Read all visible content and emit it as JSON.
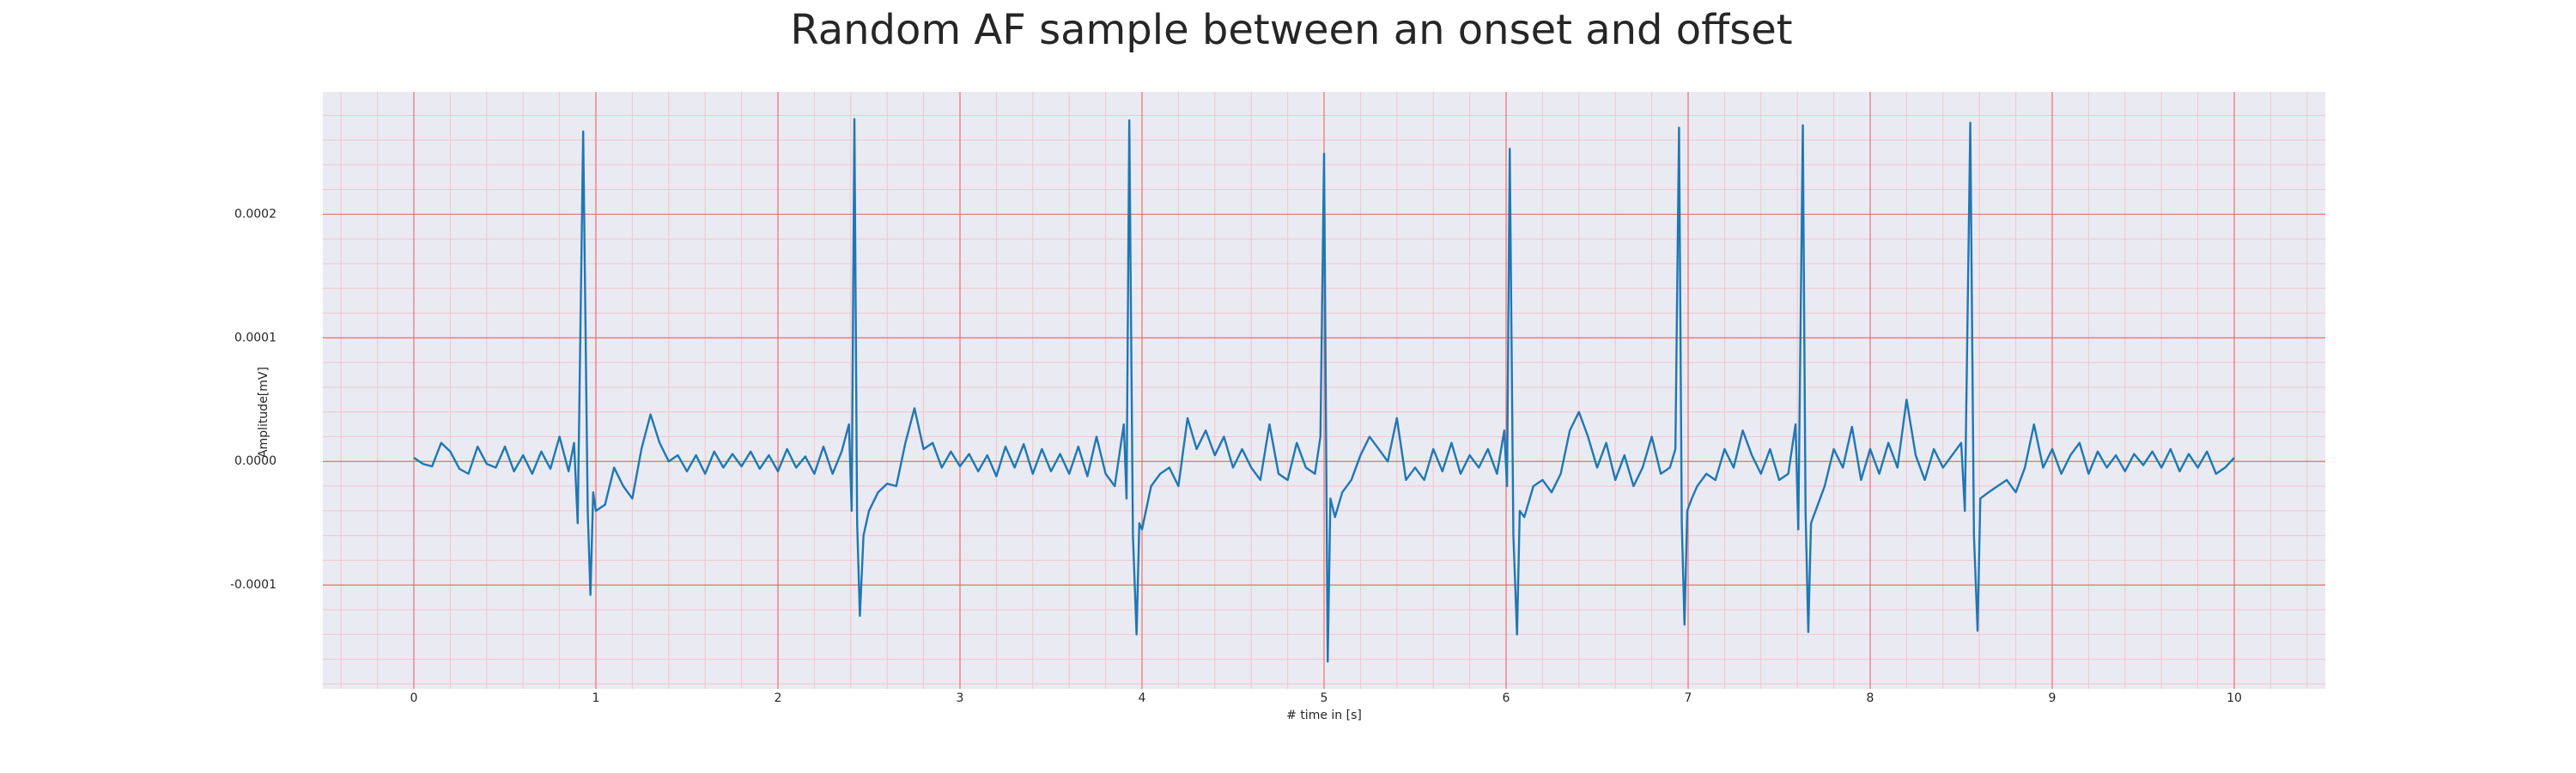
{
  "chart_data": {
    "type": "line",
    "title": "Random AF sample between an onset and offset",
    "x_label": "# time in [s]",
    "y_label": "Amplitude[mV]",
    "color": "#1f77b4",
    "grid": true,
    "minor_grid": true,
    "xlim": [
      -0.5,
      10.5
    ],
    "xticks": [
      0,
      1,
      2,
      3,
      4,
      5,
      6,
      7,
      8,
      9,
      10
    ],
    "ylim": [
      -0.000184,
      0.000299
    ],
    "yticks": [
      -0.0001,
      {
        "value": 0,
        "label": "0.0000"
      },
      0.0001,
      0.0002
    ],
    "x": [
      0,
      0.05,
      0.1,
      0.15,
      0.2,
      0.25,
      0.3,
      0.35,
      0.4,
      0.45,
      0.5,
      0.55,
      0.6,
      0.65,
      0.7,
      0.75,
      0.8,
      0.85,
      0.88,
      0.9,
      0.93,
      0.955,
      0.97,
      0.985,
      1.0,
      1.05,
      1.1,
      1.15,
      1.2,
      1.25,
      1.3,
      1.35,
      1.4,
      1.45,
      1.5,
      1.55,
      1.6,
      1.65,
      1.7,
      1.75,
      1.8,
      1.85,
      1.9,
      1.95,
      2.0,
      2.05,
      2.1,
      2.15,
      2.2,
      2.25,
      2.3,
      2.35,
      2.39,
      2.405,
      2.42,
      2.435,
      2.45,
      2.47,
      2.5,
      2.55,
      2.6,
      2.65,
      2.7,
      2.75,
      2.8,
      2.85,
      2.9,
      2.95,
      3.0,
      3.05,
      3.1,
      3.15,
      3.2,
      3.25,
      3.3,
      3.35,
      3.4,
      3.45,
      3.5,
      3.55,
      3.6,
      3.65,
      3.7,
      3.75,
      3.8,
      3.85,
      3.9,
      3.915,
      3.93,
      3.95,
      3.97,
      3.985,
      4.0,
      4.05,
      4.1,
      4.15,
      4.2,
      4.25,
      4.3,
      4.35,
      4.4,
      4.45,
      4.5,
      4.55,
      4.6,
      4.65,
      4.7,
      4.75,
      4.8,
      4.85,
      4.9,
      4.95,
      4.98,
      5.0,
      5.015,
      5.02,
      5.035,
      5.06,
      5.1,
      5.15,
      5.2,
      5.25,
      5.3,
      5.35,
      5.4,
      5.45,
      5.5,
      5.55,
      5.6,
      5.65,
      5.7,
      5.75,
      5.8,
      5.85,
      5.9,
      5.95,
      5.99,
      6.005,
      6.02,
      6.04,
      6.06,
      6.075,
      6.1,
      6.15,
      6.2,
      6.25,
      6.3,
      6.35,
      6.4,
      6.45,
      6.5,
      6.55,
      6.6,
      6.65,
      6.7,
      6.75,
      6.8,
      6.85,
      6.9,
      6.93,
      6.95,
      6.965,
      6.98,
      6.995,
      7.02,
      7.05,
      7.1,
      7.15,
      7.2,
      7.25,
      7.3,
      7.35,
      7.4,
      7.45,
      7.5,
      7.55,
      7.59,
      7.605,
      7.63,
      7.645,
      7.66,
      7.675,
      7.7,
      7.75,
      7.8,
      7.85,
      7.9,
      7.95,
      8.0,
      8.05,
      8.1,
      8.15,
      8.2,
      8.25,
      8.3,
      8.35,
      8.4,
      8.45,
      8.5,
      8.52,
      8.55,
      8.57,
      8.59,
      8.605,
      8.65,
      8.7,
      8.75,
      8.8,
      8.85,
      8.9,
      8.95,
      9.0,
      9.05,
      9.1,
      9.15,
      9.2,
      9.25,
      9.3,
      9.35,
      9.4,
      9.45,
      9.5,
      9.55,
      9.6,
      9.65,
      9.7,
      9.75,
      9.8,
      9.85,
      9.9,
      9.95,
      10.0
    ],
    "values": [
      3e-06,
      -2e-06,
      -4e-06,
      1.5e-05,
      8e-06,
      -6e-06,
      -1e-05,
      1.2e-05,
      -2e-06,
      -5e-06,
      1.2e-05,
      -8e-06,
      5e-06,
      -1e-05,
      8e-06,
      -6e-06,
      2e-05,
      -8e-06,
      1.5e-05,
      -5e-05,
      0.000267,
      -4e-05,
      -0.000108,
      -2.5e-05,
      -4e-05,
      -3.5e-05,
      -5e-06,
      -2e-05,
      -3e-05,
      1e-05,
      3.8e-05,
      1.5e-05,
      0,
      5e-06,
      -8e-06,
      5e-06,
      -1e-05,
      8e-06,
      -5e-06,
      6e-06,
      -4e-06,
      8e-06,
      -6e-06,
      5e-06,
      -8e-06,
      1e-05,
      -5e-06,
      4e-06,
      -1e-05,
      1.2e-05,
      -1e-05,
      8e-06,
      3e-05,
      -4e-05,
      0.000277,
      -5e-05,
      -0.000125,
      -6e-05,
      -4e-05,
      -2.5e-05,
      -1.8e-05,
      -2e-05,
      1.5e-05,
      4.3e-05,
      1e-05,
      1.5e-05,
      -5e-06,
      8e-06,
      -4e-06,
      6e-06,
      -8e-06,
      5e-06,
      -1.2e-05,
      1.2e-05,
      -5e-06,
      1.4e-05,
      -1e-05,
      1e-05,
      -8e-06,
      6e-06,
      -1e-05,
      1.2e-05,
      -1.2e-05,
      2e-05,
      -1e-05,
      -2e-05,
      3e-05,
      -3e-05,
      0.000276,
      -6e-05,
      -0.00014,
      -5e-05,
      -5.5e-05,
      -2e-05,
      -1e-05,
      -5e-06,
      -2e-05,
      3.5e-05,
      1e-05,
      2.5e-05,
      5e-06,
      2e-05,
      -5e-06,
      1e-05,
      -5e-06,
      -1.5e-05,
      3e-05,
      -1e-05,
      -1.5e-05,
      1.5e-05,
      -5e-06,
      -1e-05,
      2e-05,
      0.000249,
      -6e-05,
      -0.000162,
      -3e-05,
      -4.5e-05,
      -2.5e-05,
      -1.5e-05,
      5e-06,
      2e-05,
      1e-05,
      0,
      3.5e-05,
      -1.5e-05,
      -5e-06,
      -1.5e-05,
      1e-05,
      -8e-06,
      1.5e-05,
      -1e-05,
      5e-06,
      -5e-06,
      1e-05,
      -1e-05,
      2.5e-05,
      -2e-05,
      0.000253,
      -6e-05,
      -0.00014,
      -4e-05,
      -4.5e-05,
      -2e-05,
      -1.5e-05,
      -2.5e-05,
      -1e-05,
      2.5e-05,
      4e-05,
      2e-05,
      -5e-06,
      1.5e-05,
      -1.5e-05,
      5e-06,
      -2e-05,
      -5e-06,
      2e-05,
      -1e-05,
      -5e-06,
      1e-05,
      0.00027,
      -5e-05,
      -0.000132,
      -4e-05,
      -3e-05,
      -2e-05,
      -1e-05,
      -1.5e-05,
      1e-05,
      -5e-06,
      2.5e-05,
      5e-06,
      -1e-05,
      1e-05,
      -1.5e-05,
      -1e-05,
      3e-05,
      -5.5e-05,
      0.000272,
      -4e-05,
      -0.000138,
      -5e-05,
      -4e-05,
      -2e-05,
      1e-05,
      -5e-06,
      2.8e-05,
      -1.5e-05,
      1e-05,
      -1e-05,
      1.5e-05,
      -5e-06,
      5e-05,
      5e-06,
      -1.5e-05,
      1e-05,
      -5e-06,
      5e-06,
      1.5e-05,
      -4e-05,
      0.000274,
      -6e-05,
      -0.000137,
      -3e-05,
      -2.5e-05,
      -2e-05,
      -1.5e-05,
      -2.5e-05,
      -5e-06,
      3e-05,
      -5e-06,
      1e-05,
      -1e-05,
      5e-06,
      1.5e-05,
      -1e-05,
      8e-06,
      -5e-06,
      5e-06,
      -8e-06,
      6e-06,
      -3e-06,
      8e-06,
      -5e-06,
      1e-05,
      -8e-06,
      6e-06,
      -5e-06,
      8e-06,
      -1e-05,
      -5e-06,
      3e-06
    ]
  }
}
